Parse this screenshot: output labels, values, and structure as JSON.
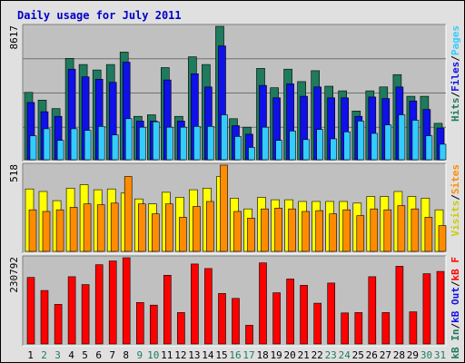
{
  "title": "Daily usage for July 2011",
  "colors": {
    "title": "#0000c8",
    "page_bg": "#e0e0e0",
    "plot_bg": "#c0c0c0",
    "hits": "#1f7a5e",
    "files": "#1010e8",
    "pages": "#33ccff",
    "visits": "#ffff00",
    "sites": "#ff8c00",
    "kbin": "#1f7a5e",
    "kbout": "#1010e8",
    "kbf": "#ff0000",
    "day_weekday": "#000000",
    "day_weekend": "#1f7a5e",
    "sep": "#000000"
  },
  "legend": {
    "panel1": [
      {
        "text": "Hits",
        "color": "#1f7a5e"
      },
      {
        "text": "/",
        "color": "#000000"
      },
      {
        "text": "Files",
        "color": "#1010e8"
      },
      {
        "text": "/",
        "color": "#000000"
      },
      {
        "text": "Pages",
        "color": "#33ccff"
      }
    ],
    "panel2": [
      {
        "text": "Visits",
        "color": "#cccc00"
      },
      {
        "text": "/",
        "color": "#000000"
      },
      {
        "text": "Sites",
        "color": "#ff8c00"
      }
    ],
    "panel3": [
      {
        "text": "kB In",
        "color": "#1f7a5e"
      },
      {
        "text": "/",
        "color": "#000000"
      },
      {
        "text": "kB Out",
        "color": "#1010e8"
      },
      {
        "text": "/",
        "color": "#000000"
      },
      {
        "text": "kB F",
        "color": "#ff0000"
      }
    ]
  },
  "chart_data": {
    "type": "bar",
    "title": "Daily usage for July 2011",
    "categories": [
      "1",
      "2",
      "3",
      "4",
      "5",
      "6",
      "7",
      "8",
      "9",
      "10",
      "11",
      "12",
      "13",
      "14",
      "15",
      "16",
      "17",
      "18",
      "19",
      "20",
      "21",
      "22",
      "23",
      "24",
      "25",
      "26",
      "27",
      "28",
      "29",
      "30",
      "31"
    ],
    "weekend_days": [
      "2",
      "3",
      "9",
      "10",
      "16",
      "17",
      "23",
      "24",
      "30",
      "31"
    ],
    "panels": [
      {
        "name": "hits-files-pages",
        "ymax": 8617,
        "series": [
          {
            "name": "Hits",
            "values": [
              4350,
              3850,
              3300,
              6550,
              6150,
              5800,
              6150,
              6950,
              2800,
              2900,
              5950,
              2800,
              6650,
              6150,
              8617,
              2650,
              2100,
              5900,
              4650,
              5850,
              5050,
              5750,
              4750,
              4450,
              3150,
              4450,
              4700,
              5500,
              4100,
              4100,
              2350
            ]
          },
          {
            "name": "Files",
            "values": [
              3700,
              3100,
              2800,
              5850,
              5350,
              5200,
              5000,
              6300,
              2500,
              2500,
              5150,
              2500,
              5550,
              4700,
              7350,
              2200,
              1650,
              4800,
              4000,
              4900,
              4100,
              4700,
              4000,
              4000,
              2800,
              4050,
              3950,
              4700,
              3800,
              3250,
              2050
            ]
          },
          {
            "name": "Pages",
            "values": [
              1550,
              2000,
              1250,
              2000,
              1900,
              2150,
              1600,
              2650,
              2100,
              2450,
              2100,
              2100,
              2150,
              2150,
              2900,
              1500,
              800,
              2100,
              1250,
              1850,
              1300,
              1950,
              1350,
              1800,
              2500,
              1700,
              2250,
              2900,
              2550,
              1550,
              1000
            ]
          }
        ]
      },
      {
        "name": "visits-sites",
        "ymax": 518,
        "series": [
          {
            "name": "Visits",
            "values": [
              375,
              360,
              305,
              380,
              400,
              370,
              375,
              350,
              315,
              285,
              355,
              325,
              370,
              380,
              450,
              320,
              255,
              325,
              310,
              310,
              300,
              300,
              300,
              300,
              290,
              330,
              330,
              360,
              330,
              320,
              250
            ]
          },
          {
            "name": "Sites",
            "values": [
              250,
              240,
              250,
              265,
              285,
              280,
              290,
              450,
              285,
              225,
              285,
              205,
              270,
              300,
              518,
              240,
              200,
              255,
              260,
              255,
              240,
              245,
              225,
              250,
              215,
              255,
              250,
              275,
              255,
              205,
              155
            ]
          }
        ]
      },
      {
        "name": "kbf-kbout-kbin",
        "ymax": 230792,
        "series": [
          {
            "name": "kB F",
            "values": [
              178000,
              143000,
              106000,
              180000,
              159000,
              212000,
              222000,
              230792,
              111000,
              104000,
              184000,
              84000,
              214000,
              202000,
              135000,
              122000,
              50000,
              217000,
              137000,
              174000,
              157000,
              109000,
              163000,
              83000,
              84000,
              180000,
              84000,
              208000,
              86000,
              188000,
              194000
            ]
          }
        ]
      }
    ]
  }
}
